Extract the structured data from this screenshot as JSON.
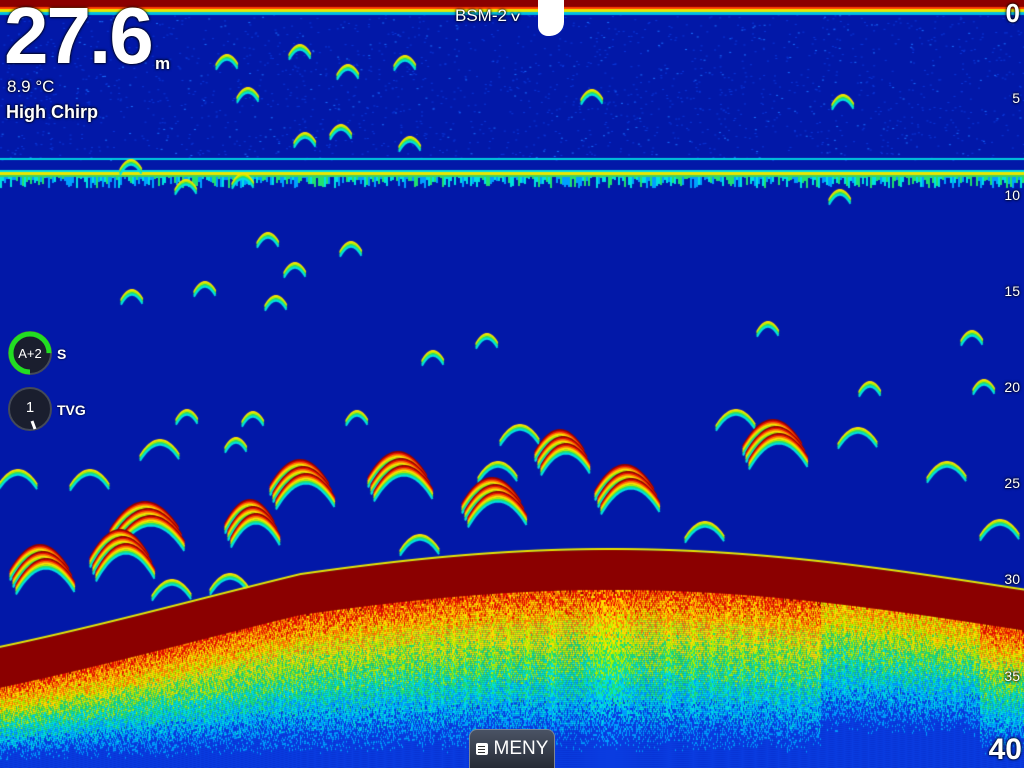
{
  "depth": {
    "value": "27.6",
    "unit": "m"
  },
  "water_temp": "8.9 °C",
  "frequency_mode": "High Chirp",
  "source": {
    "label": "BSM-2",
    "chevron": "chevron-down-icon"
  },
  "range_scale": {
    "top": "0",
    "bottom": "40",
    "ticks": [
      "5",
      "10",
      "15",
      "20",
      "25",
      "30",
      "35"
    ]
  },
  "controls": {
    "sensitivity": {
      "value": "A+2",
      "label": "S",
      "level": 0.75,
      "accent": "#22dd22"
    },
    "tvg": {
      "value": "1",
      "label": "TVG",
      "level": 0.1
    }
  },
  "menu_button": {
    "label": "MENY",
    "icon": "menu-icon"
  },
  "colors": {
    "water": "#0218a8",
    "bottom": "#8b0000",
    "surface_line": "#e8e800"
  }
}
